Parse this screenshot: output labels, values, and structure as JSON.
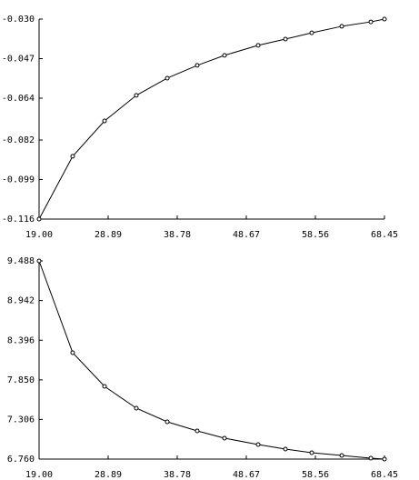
{
  "chart_data": [
    {
      "type": "line",
      "color": "#000000",
      "markers": true,
      "x": [
        19,
        23.81,
        28.37,
        32.92,
        37.35,
        41.64,
        45.55,
        50.36,
        54.27,
        58.04,
        62.34,
        66.5,
        68.45
      ],
      "values": [
        -0.116,
        -0.089,
        -0.0738,
        -0.0628,
        -0.0554,
        -0.0499,
        -0.0456,
        -0.0413,
        -0.0386,
        -0.0359,
        -0.0331,
        -0.0312,
        -0.03
      ],
      "xlim": [
        19,
        68.45
      ],
      "ylim": [
        -0.116,
        -0.03
      ],
      "xticks": [
        {
          "value": 19,
          "label": "19.00"
        },
        28.89,
        38.78,
        48.67,
        58.56,
        68.45
      ],
      "yticks": [
        {
          "value": -0.03,
          "label": "-0.030"
        },
        -0.047,
        -0.064,
        -0.082,
        -0.099,
        -0.116
      ]
    },
    {
      "type": "line",
      "color": "#000000",
      "markers": true,
      "x": [
        19,
        23.81,
        28.37,
        32.92,
        37.35,
        41.64,
        45.55,
        50.36,
        54.27,
        58.04,
        62.34,
        66.5,
        68.45
      ],
      "values": [
        9.488,
        8.224,
        7.761,
        7.461,
        7.273,
        7.148,
        7.048,
        6.96,
        6.898,
        6.848,
        6.81,
        6.773,
        6.76
      ],
      "xlim": [
        19,
        68.45
      ],
      "ylim": [
        6.76,
        9.488
      ],
      "xticks": [
        {
          "value": 19,
          "label": "19.00"
        },
        28.89,
        38.78,
        48.67,
        58.56,
        68.45
      ],
      "yticks": [
        9.488,
        8.942,
        8.396,
        {
          "value": 7.85,
          "label": "7.850"
        },
        7.306,
        {
          "value": 6.76,
          "label": "6.760"
        }
      ]
    }
  ]
}
